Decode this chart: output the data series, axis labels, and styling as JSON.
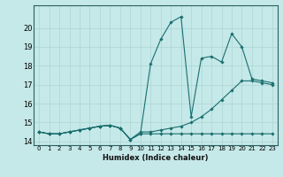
{
  "xlabel": "Humidex (Indice chaleur)",
  "ylabel": "",
  "xlim": [
    -0.5,
    23.5
  ],
  "ylim": [
    13.8,
    21.2
  ],
  "background_color": "#c5e8e8",
  "grid_color": "#add4d4",
  "line_color": "#1a6e6e",
  "yticks": [
    14,
    15,
    16,
    17,
    18,
    19,
    20
  ],
  "xticks": [
    0,
    1,
    2,
    3,
    4,
    5,
    6,
    7,
    8,
    9,
    10,
    11,
    12,
    13,
    14,
    15,
    16,
    17,
    18,
    19,
    20,
    21,
    22,
    23
  ],
  "xtick_labels": [
    "0",
    "1",
    "2",
    "3",
    "4",
    "5",
    "6",
    "7",
    "8",
    "9",
    "10",
    "11",
    "12",
    "13",
    "14",
    "15",
    "16",
    "17",
    "18",
    "19",
    "20",
    "21",
    "22",
    "23"
  ],
  "series": [
    {
      "x": [
        0,
        1,
        2,
        3,
        4,
        5,
        6,
        7,
        8,
        9,
        10,
        11,
        12,
        13,
        14,
        15,
        16,
        17,
        18,
        19,
        20,
        21,
        22,
        23
      ],
      "y": [
        14.5,
        14.4,
        14.4,
        14.5,
        14.6,
        14.7,
        14.8,
        14.85,
        14.7,
        14.1,
        14.4,
        14.4,
        14.4,
        14.4,
        14.4,
        14.4,
        14.4,
        14.4,
        14.4,
        14.4,
        14.4,
        14.4,
        14.4,
        14.4
      ]
    },
    {
      "x": [
        0,
        1,
        2,
        3,
        4,
        5,
        6,
        7,
        8,
        9,
        10,
        11,
        12,
        13,
        14,
        15,
        16,
        17,
        18,
        19,
        20,
        21,
        22,
        23
      ],
      "y": [
        14.5,
        14.4,
        14.4,
        14.5,
        14.6,
        14.7,
        14.8,
        14.85,
        14.7,
        14.1,
        14.5,
        14.5,
        14.6,
        14.7,
        14.8,
        15.0,
        15.3,
        15.7,
        16.2,
        16.7,
        17.2,
        17.2,
        17.1,
        17.0
      ]
    },
    {
      "x": [
        0,
        1,
        2,
        3,
        4,
        5,
        6,
        7,
        8,
        9,
        10,
        11,
        12,
        13,
        14,
        15,
        16,
        17,
        18,
        19,
        20,
        21,
        22,
        23
      ],
      "y": [
        14.5,
        14.4,
        14.4,
        14.5,
        14.6,
        14.7,
        14.8,
        14.85,
        14.7,
        14.1,
        14.4,
        18.1,
        19.4,
        20.3,
        20.6,
        15.3,
        18.4,
        18.5,
        18.2,
        19.7,
        19.0,
        17.3,
        17.2,
        17.1
      ]
    }
  ]
}
